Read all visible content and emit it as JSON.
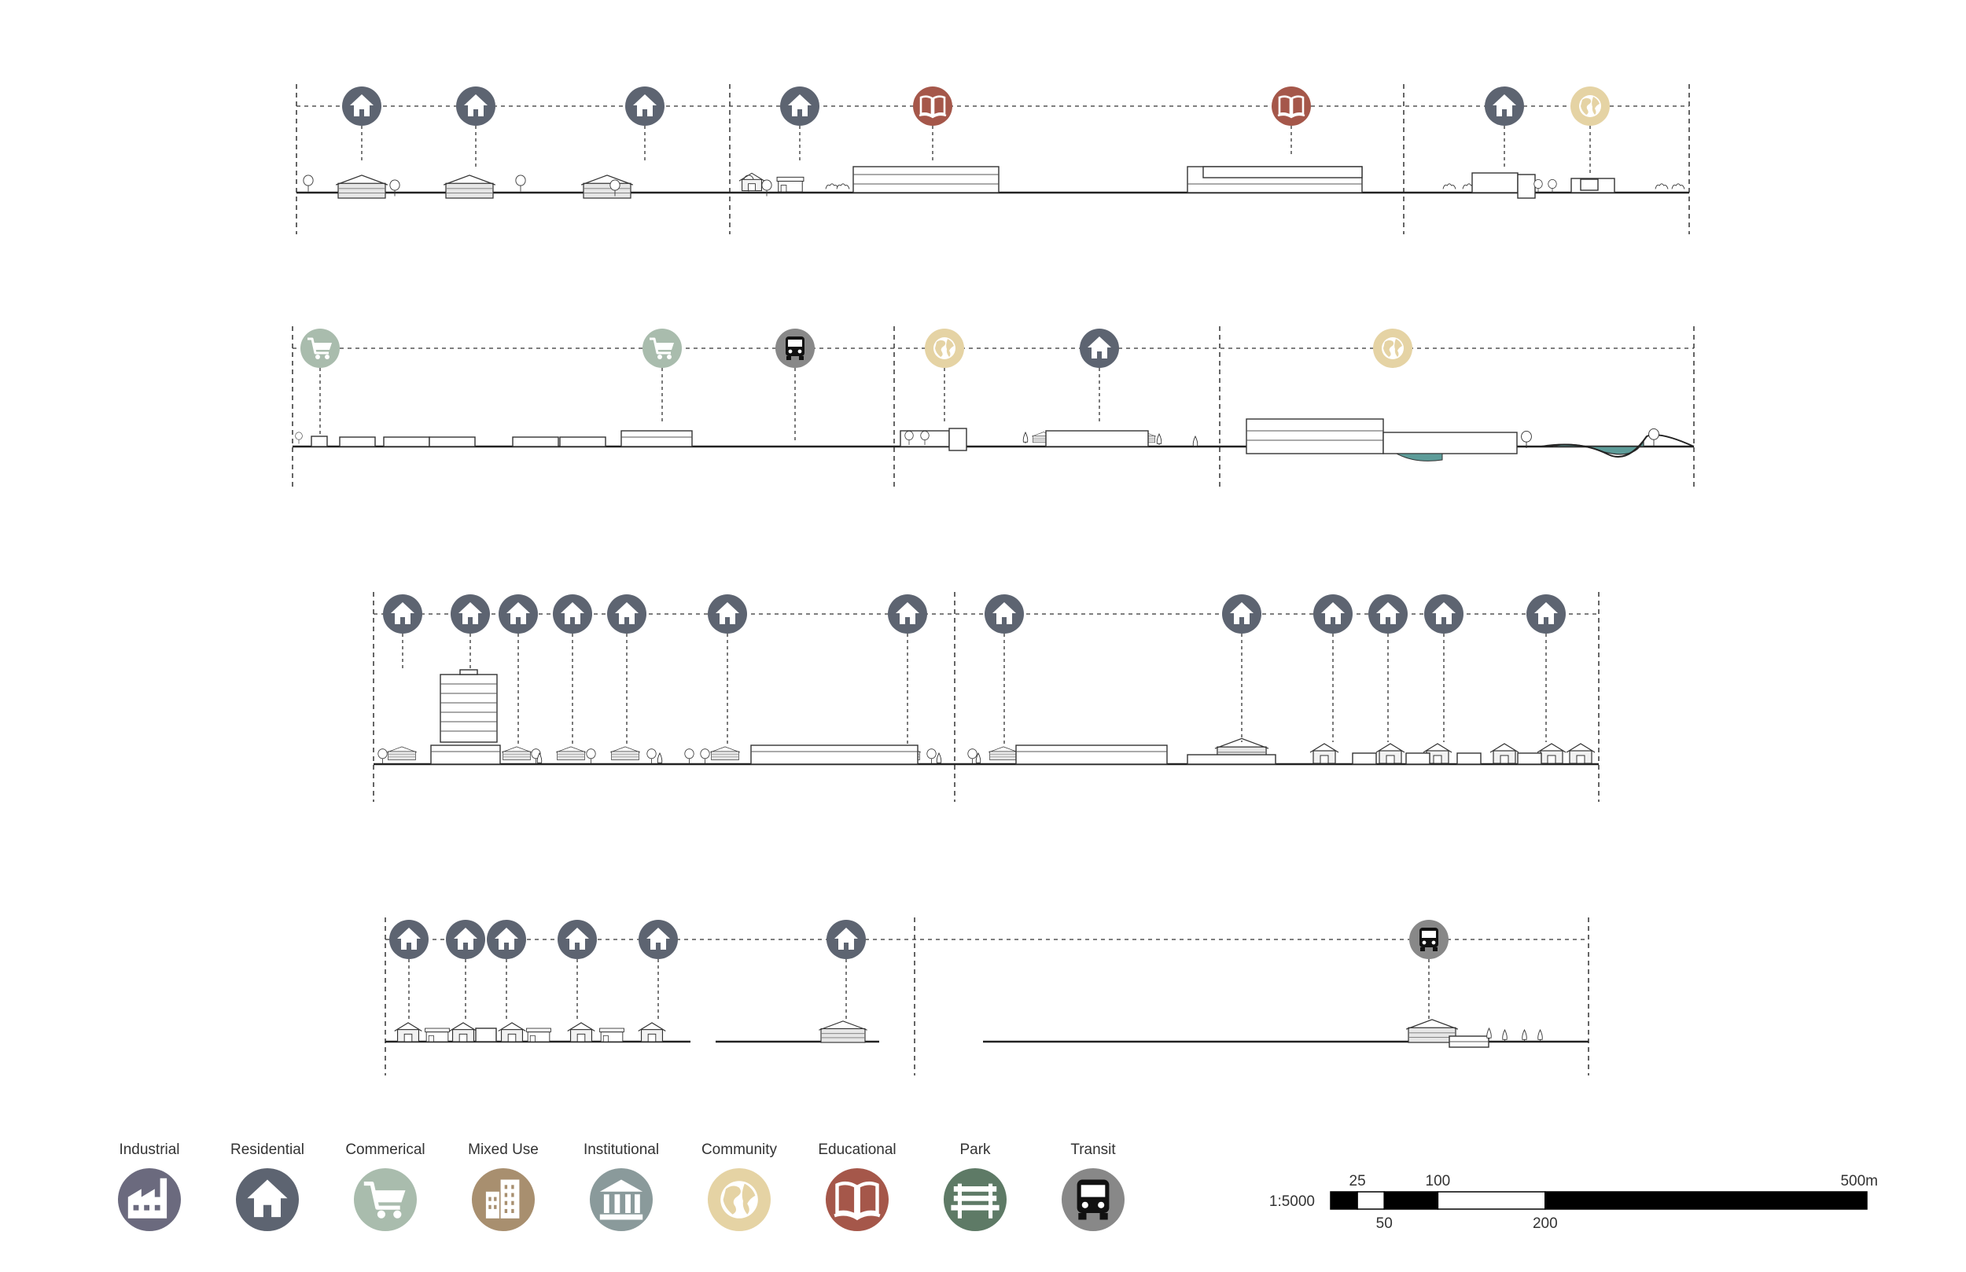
{
  "colors": {
    "industrial": "#6b6a7e",
    "residential": "#5d6471",
    "commercial": "#a9bcad",
    "mixed_use": "#a88f6f",
    "institutional": "#8a9a9b",
    "community": "#e5d3a4",
    "educational": "#a5574a",
    "park": "#5e7a66",
    "transit": "#888888",
    "line": "#222222",
    "water": "#5d9c99"
  },
  "legend": [
    {
      "key": "industrial",
      "label": "Industrial",
      "icon": "factory-icon"
    },
    {
      "key": "residential",
      "label": "Residential",
      "icon": "house-icon"
    },
    {
      "key": "commercial",
      "label": "Commerical",
      "icon": "cart-icon"
    },
    {
      "key": "mixed_use",
      "label": "Mixed Use",
      "icon": "building-icon"
    },
    {
      "key": "institutional",
      "label": "Institutional",
      "icon": "columns-icon"
    },
    {
      "key": "community",
      "label": "Community",
      "icon": "globe-icon"
    },
    {
      "key": "educational",
      "label": "Educational",
      "icon": "book-icon"
    },
    {
      "key": "park",
      "label": "Park",
      "icon": "bench-icon"
    },
    {
      "key": "transit",
      "label": "Transit",
      "icon": "bus-icon"
    }
  ],
  "scale_bar": {
    "ratio": "1:5000",
    "ticks_top": [
      "25",
      "100",
      "500m"
    ],
    "ticks_bottom": [
      "50",
      "200"
    ],
    "max_m": 500,
    "segments_m": [
      0,
      25,
      50,
      100,
      200,
      500
    ]
  },
  "sections": [
    {
      "id": "row-1",
      "markers": [
        "residential",
        "residential",
        "residential",
        "residential",
        "educational",
        "educational",
        "residential",
        "community"
      ]
    },
    {
      "id": "row-2",
      "markers": [
        "commercial",
        "commercial",
        "transit",
        "community",
        "residential",
        "community"
      ]
    },
    {
      "id": "row-3",
      "markers": [
        "residential",
        "residential",
        "residential",
        "residential",
        "residential",
        "residential",
        "residential",
        "residential",
        "residential",
        "residential",
        "residential",
        "residential",
        "residential"
      ]
    },
    {
      "id": "row-4",
      "markers": [
        "residential",
        "residential",
        "residential",
        "residential",
        "residential",
        "residential",
        "transit"
      ]
    }
  ]
}
